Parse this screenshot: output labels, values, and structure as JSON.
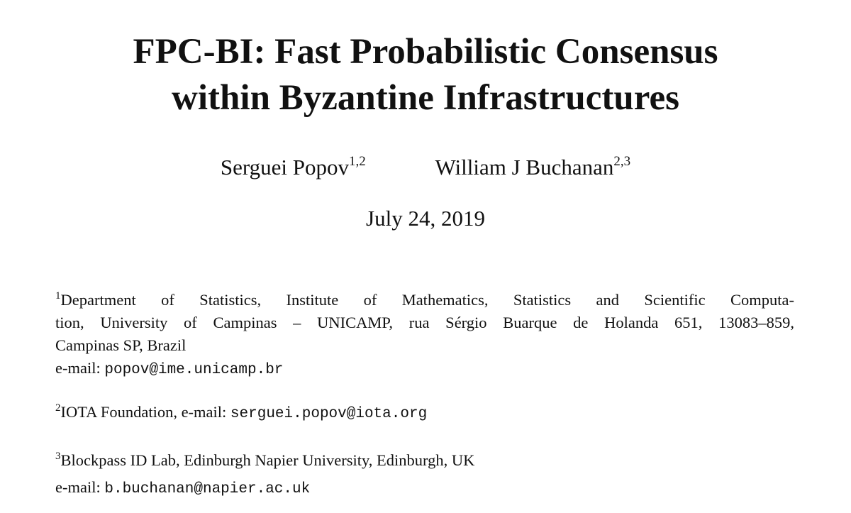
{
  "title": {
    "lines": [
      "FPC-BI: Fast Probabilistic Consensus",
      "within Byzantine Infrastructures"
    ]
  },
  "authors": [
    {
      "name": "Serguei Popov",
      "affiliations": "1,2"
    },
    {
      "name": "William J Buchanan",
      "affiliations": "2,3"
    }
  ],
  "date": "July 24, 2019",
  "affiliations": [
    {
      "mark": "1",
      "lines": [
        "Department of Statistics, Institute of Mathematics, Statistics and Scientific Computa-",
        "tion, University of Campinas – UNICAMP, rua Sérgio Buarque de Holanda 651, 13083–859,",
        "Campinas SP, Brazil"
      ],
      "email_label": "e-mail:",
      "email": "popov@ime.unicamp.br"
    },
    {
      "mark": "2",
      "text": "IOTA Foundation, e-mail:",
      "email": "serguei.popov@iota.org"
    },
    {
      "mark": "3",
      "text": "Blockpass ID Lab, Edinburgh Napier University, Edinburgh, UK",
      "email_label": "e-mail:",
      "email": "b.buchanan@napier.ac.uk"
    }
  ]
}
